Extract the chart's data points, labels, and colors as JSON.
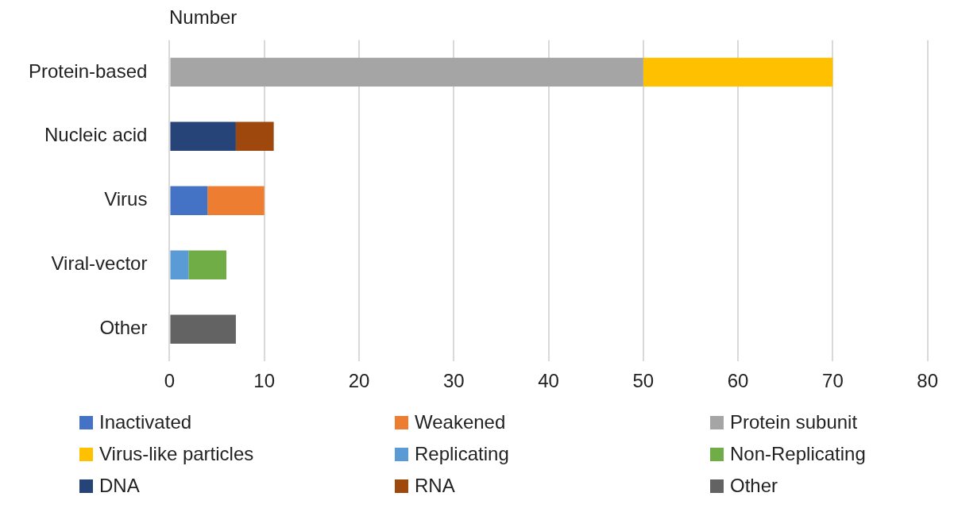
{
  "chart_data": {
    "type": "bar",
    "orientation": "horizontal",
    "stacked": true,
    "xlabel": "Number",
    "categories": [
      "Protein-based",
      "Nucleic acid",
      "Virus",
      "Viral-vector",
      "Other"
    ],
    "series": [
      {
        "name": "Inactivated",
        "color": "#4472c4",
        "values": [
          null,
          null,
          4,
          null,
          null
        ]
      },
      {
        "name": "Weakened",
        "color": "#ed7d31",
        "values": [
          null,
          null,
          6,
          null,
          null
        ]
      },
      {
        "name": "Protein subunit",
        "color": "#a5a5a5",
        "values": [
          50,
          null,
          null,
          null,
          null
        ]
      },
      {
        "name": "Virus-like particles",
        "color": "#ffc000",
        "values": [
          20,
          null,
          null,
          null,
          null
        ]
      },
      {
        "name": "Replicating",
        "color": "#5b9bd5",
        "values": [
          null,
          null,
          null,
          2,
          null
        ]
      },
      {
        "name": "Non-Replicating",
        "color": "#70ad47",
        "values": [
          null,
          null,
          null,
          4,
          null
        ]
      },
      {
        "name": "DNA",
        "color": "#264478",
        "values": [
          null,
          7,
          null,
          null,
          null
        ]
      },
      {
        "name": "RNA",
        "color": "#9e480e",
        "values": [
          null,
          4,
          null,
          null,
          null
        ]
      },
      {
        "name": "Other",
        "color": "#636363",
        "values": [
          null,
          null,
          null,
          null,
          7
        ]
      }
    ],
    "xlim": [
      0,
      80
    ],
    "xticks": [
      0,
      10,
      20,
      30,
      40,
      50,
      60,
      70,
      80
    ],
    "grid": "x",
    "legend": "bottom"
  }
}
